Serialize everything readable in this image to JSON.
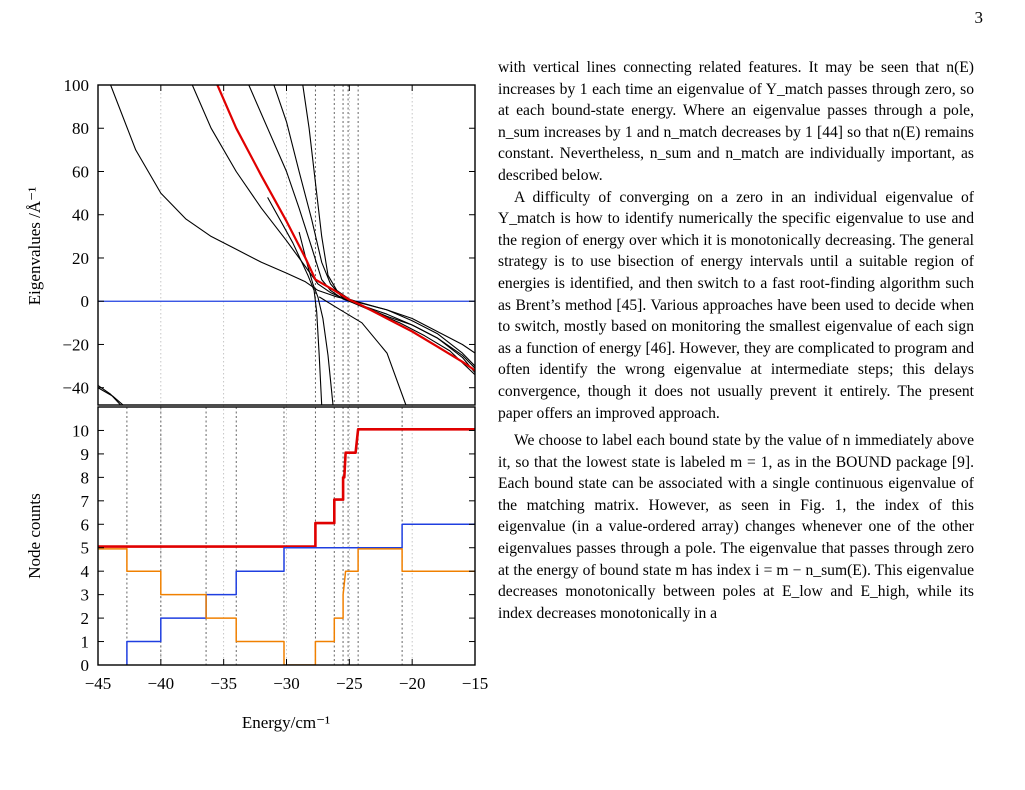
{
  "page": {
    "number": "3"
  },
  "chart_data": [
    {
      "type": "line",
      "panel": "upper",
      "ylabel": "Eigenvalues /Å⁻¹",
      "xlim": [
        -45,
        -15
      ],
      "ylim": [
        -48,
        100
      ],
      "yticks": [
        100,
        80,
        60,
        40,
        20,
        0,
        -20,
        -40
      ],
      "ytick_labels": [
        "100",
        "80",
        "60",
        "40",
        "20",
        "0",
        "−20",
        "−40"
      ],
      "zero_line_color": "#1f3fe0",
      "highlight_color": "#e00000",
      "reference_lines_x": [
        -27.7,
        -26.2,
        -25.5,
        -25.1,
        -24.3
      ],
      "series": [
        {
          "color": "#e00000",
          "highlight": true,
          "values": [
            [
              -35.5,
              100
            ],
            [
              -34,
              80
            ],
            [
              -32,
              58
            ],
            [
              -30,
              37
            ],
            [
              -28.5,
              20
            ],
            [
              -27.7,
              10
            ],
            [
              -26.2,
              5
            ],
            [
              -25.1,
              1
            ],
            [
              -24,
              -2
            ],
            [
              -22,
              -8
            ],
            [
              -20,
              -14
            ],
            [
              -18,
              -21
            ],
            [
              -16,
              -28
            ],
            [
              -15,
              -32
            ]
          ]
        },
        {
          "color": "#000000",
          "values": [
            [
              -33,
              100
            ],
            [
              -31.5,
              80
            ],
            [
              -30,
              60
            ],
            [
              -29,
              43
            ],
            [
              -28,
              25
            ],
            [
              -27.2,
              10
            ],
            [
              -26.5,
              5
            ],
            [
              -25.5,
              1
            ],
            [
              -24,
              -2
            ],
            [
              -22,
              -7
            ],
            [
              -20,
              -11
            ],
            [
              -18,
              -17
            ],
            [
              -16,
              -26
            ],
            [
              -15,
              -33
            ]
          ]
        },
        {
          "color": "#000000",
          "values": [
            [
              -31,
              100
            ],
            [
              -30,
              83
            ],
            [
              -29,
              60
            ],
            [
              -28,
              38
            ],
            [
              -27.2,
              18
            ],
            [
              -26.5,
              8
            ],
            [
              -25.6,
              2
            ],
            [
              -24.5,
              0
            ],
            [
              -22,
              -4
            ],
            [
              -20,
              -9
            ],
            [
              -18,
              -15
            ],
            [
              -16,
              -24
            ],
            [
              -15,
              -30
            ]
          ]
        },
        {
          "color": "#000000",
          "values": [
            [
              -28.7,
              100
            ],
            [
              -28.2,
              80
            ],
            [
              -27.7,
              55
            ],
            [
              -27.2,
              30
            ],
            [
              -26.7,
              12
            ],
            [
              -26,
              5
            ],
            [
              -25,
              1
            ],
            [
              -24,
              -2
            ],
            [
              -22,
              -6
            ],
            [
              -20,
              -11
            ],
            [
              -18,
              -17
            ],
            [
              -16,
              -25
            ],
            [
              -15,
              -31
            ]
          ]
        },
        {
          "color": "#000000",
          "values": [
            [
              -44,
              100
            ],
            [
              -42,
              70
            ],
            [
              -40,
              50
            ],
            [
              -38,
              38
            ],
            [
              -36,
              30
            ],
            [
              -34,
              24
            ],
            [
              -32,
              18
            ],
            [
              -30,
              13
            ],
            [
              -28.5,
              9
            ],
            [
              -27.5,
              5
            ],
            [
              -26,
              2
            ],
            [
              -24,
              -1
            ],
            [
              -22,
              -4
            ],
            [
              -20,
              -8
            ],
            [
              -18,
              -14
            ],
            [
              -16,
              -20
            ],
            [
              -15,
              -24
            ]
          ]
        },
        {
          "color": "#000000",
          "values": [
            [
              -37.5,
              100
            ],
            [
              -36,
              80
            ],
            [
              -34,
              60
            ],
            [
              -32,
              43
            ],
            [
              -30,
              28
            ],
            [
              -28.5,
              16
            ],
            [
              -27.5,
              8
            ],
            [
              -26.5,
              4
            ],
            [
              -25,
              0
            ],
            [
              -23,
              -5
            ],
            [
              -21,
              -10
            ],
            [
              -19,
              -16
            ],
            [
              -17,
              -23
            ],
            [
              -15,
              -34
            ]
          ]
        },
        {
          "color": "#000000",
          "values": [
            [
              -31.5,
              48
            ],
            [
              -29.5,
              27
            ],
            [
              -28.3,
              12
            ],
            [
              -27.8,
              5
            ],
            [
              -27.6,
              -5
            ],
            [
              -27.4,
              -25
            ],
            [
              -27.2,
              -48
            ]
          ]
        },
        {
          "color": "#000000",
          "values": [
            [
              -29,
              32
            ],
            [
              -28.3,
              16
            ],
            [
              -27.9,
              8
            ],
            [
              -27.5,
              2
            ],
            [
              -27.1,
              -8
            ],
            [
              -26.7,
              -25
            ],
            [
              -26.3,
              -48
            ]
          ]
        },
        {
          "color": "#000000",
          "values": [
            [
              -45,
              -39
            ],
            [
              -44,
              -43
            ],
            [
              -43.2,
              -48
            ]
          ]
        },
        {
          "color": "#000000",
          "values": [
            [
              -45,
              -40
            ],
            [
              -43.8,
              -44
            ],
            [
              -43,
              -48
            ]
          ]
        },
        {
          "color": "#000000",
          "values": [
            [
              -27.4,
              2
            ],
            [
              -26,
              -3
            ],
            [
              -24,
              -10
            ],
            [
              -22,
              -24
            ],
            [
              -20.5,
              -48
            ]
          ]
        }
      ]
    },
    {
      "type": "line",
      "panel": "lower",
      "xlabel": "Energy/cm⁻¹",
      "ylabel": "Node counts",
      "xlim": [
        -45,
        -15
      ],
      "ylim": [
        0,
        11
      ],
      "xticks": [
        -45,
        -40,
        -35,
        -30,
        -25,
        -20,
        -15
      ],
      "xtick_labels": [
        "−45",
        "−40",
        "−35",
        "−30",
        "−25",
        "−20",
        "−15"
      ],
      "yticks": [
        0,
        1,
        2,
        3,
        4,
        5,
        6,
        7,
        8,
        9,
        10
      ],
      "ytick_labels": [
        "0",
        "1",
        "2",
        "3",
        "4",
        "5",
        "6",
        "7",
        "8",
        "9",
        "10"
      ],
      "reference_lines_x": [
        -42.7,
        -40,
        -36.4,
        -34,
        -30.2,
        -27.7,
        -26.2,
        -25.5,
        -25.1,
        -24.3,
        -20.8
      ],
      "series": [
        {
          "color": "#e00000",
          "values": [
            [
              -45,
              5.05
            ],
            [
              -27.7,
              5.05
            ],
            [
              -27.7,
              6.05
            ],
            [
              -26.2,
              6.05
            ],
            [
              -26.2,
              7.05
            ],
            [
              -25.5,
              7.05
            ],
            [
              -25.5,
              8
            ],
            [
              -25.4,
              8
            ],
            [
              -25.3,
              9.05
            ],
            [
              -24.5,
              9.05
            ],
            [
              -24.3,
              10.05
            ],
            [
              -15,
              10.05
            ]
          ]
        },
        {
          "color": "#1f3fe0",
          "values": [
            [
              -42.7,
              0
            ],
            [
              -42.7,
              1
            ],
            [
              -40,
              1
            ],
            [
              -40,
              2
            ],
            [
              -36.4,
              2
            ],
            [
              -36.4,
              3
            ],
            [
              -34,
              3
            ],
            [
              -34,
              4
            ],
            [
              -30.2,
              4
            ],
            [
              -30.2,
              5
            ],
            [
              -20.8,
              5
            ],
            [
              -20.8,
              6
            ],
            [
              -15,
              6
            ]
          ]
        },
        {
          "color": "#f08000",
          "values": [
            [
              -45,
              4.95
            ],
            [
              -42.7,
              4.95
            ],
            [
              -42.7,
              4
            ],
            [
              -40,
              4
            ],
            [
              -40,
              3
            ],
            [
              -36.4,
              3
            ],
            [
              -36.4,
              2
            ],
            [
              -34,
              2
            ],
            [
              -34,
              1
            ],
            [
              -30.2,
              1
            ],
            [
              -30.2,
              0
            ],
            [
              -27.7,
              0
            ],
            [
              -27.7,
              1
            ],
            [
              -26.2,
              1
            ],
            [
              -26.2,
              2
            ],
            [
              -25.5,
              2
            ],
            [
              -25.5,
              3
            ],
            [
              -25.3,
              4
            ],
            [
              -24.3,
              4
            ],
            [
              -24.3,
              4.95
            ],
            [
              -20.8,
              4.95
            ],
            [
              -20.8,
              4
            ],
            [
              -15,
              4
            ]
          ]
        }
      ]
    }
  ],
  "body_text": {
    "p1": "with vertical lines connecting related features. It may be seen that n(E) increases by 1 each time an eigenvalue of Y_match passes through zero, so at each bound-state energy. Where an eigenvalue passes through a pole, n_sum increases by 1 and n_match decreases by 1 [44] so that n(E) remains constant. Nevertheless, n_sum and n_match are individually important, as described below.",
    "p2": "A difficulty of converging on a zero in an individual eigenvalue of Y_match is how to identify numerically the specific eigenvalue to use and the region of energy over which it is monotonically decreasing. The general strategy is to use bisection of energy intervals until a suitable region of energies is identified, and then switch to a fast root-finding algorithm such as Brent’s method [45]. Various approaches have been used to decide when to switch, mostly based on monitoring the smallest eigenvalue of each sign as a function of energy [46]. However, they are complicated to program and often identify the wrong eigenvalue at intermediate steps; this delays convergence, though it does not usually prevent it entirely. The present paper offers an improved approach.",
    "p3": "We choose to label each bound state by the value of n immediately above it, so that the lowest state is labeled m = 1, as in the BOUND package [9]. Each bound state can be associated with a single continuous eigenvalue of the matching matrix. However, as seen in Fig. 1, the index of this eigenvalue (in a value-ordered array) changes whenever one of the other eigenvalues passes through a pole. The eigenvalue that passes through zero at the energy of bound state m has index i = m − n_sum(E). This eigenvalue decreases monotonically between poles at E_low and E_high, while its index decreases monotonically in a"
  }
}
